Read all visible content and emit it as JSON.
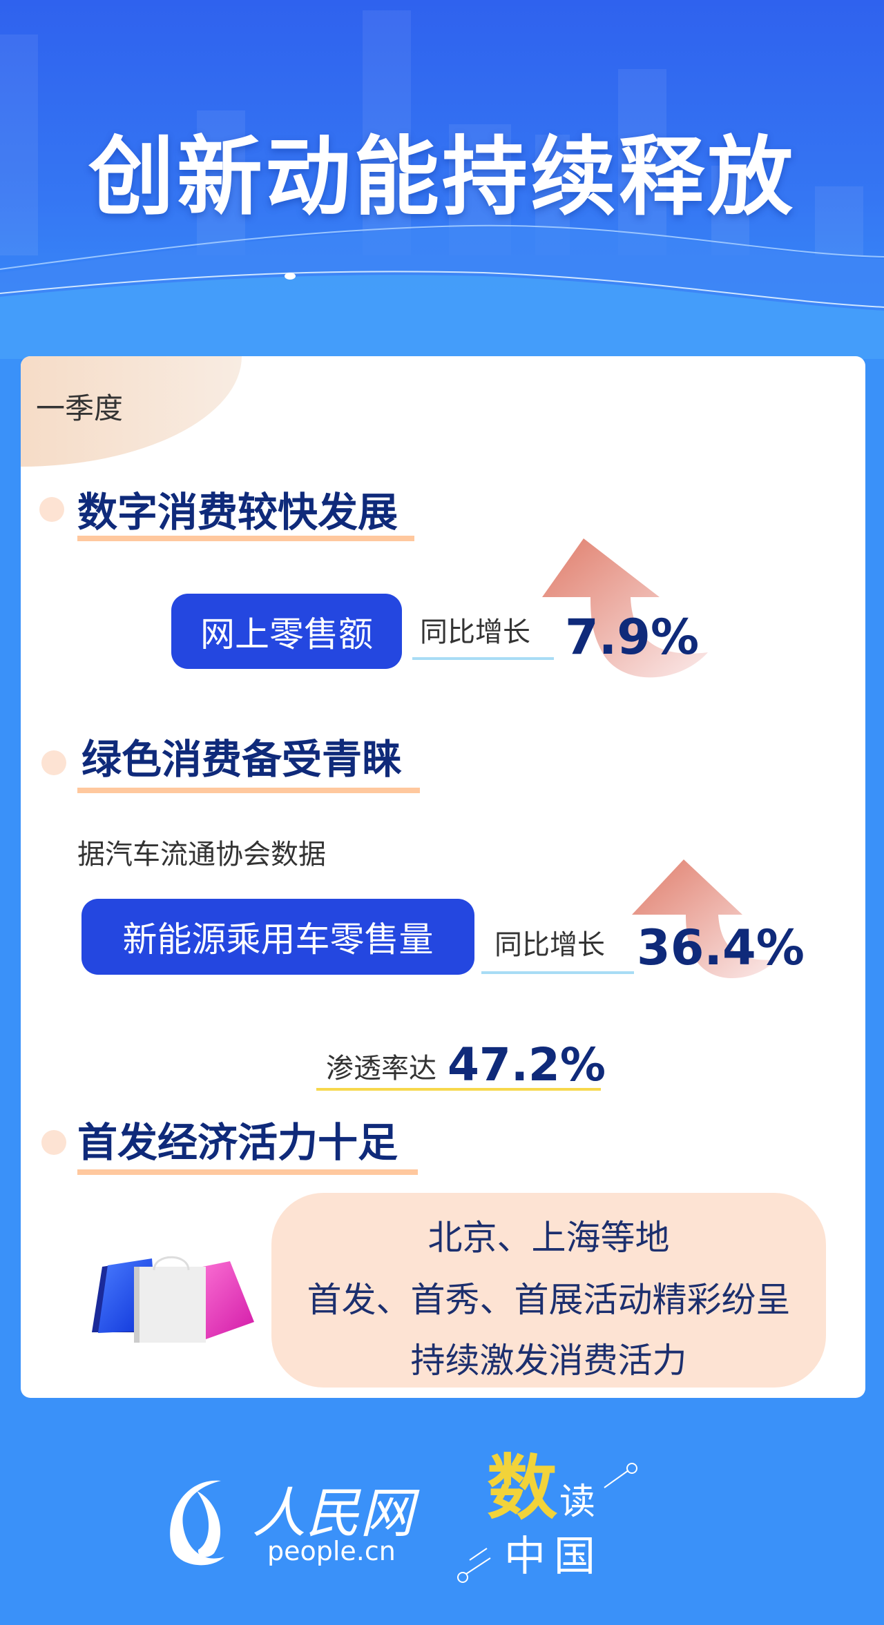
{
  "header": {
    "title": "创新动能持续释放"
  },
  "card": {
    "period": "一季度",
    "sections": [
      {
        "title": "数字消费较快发展",
        "metric": "网上零售额",
        "growth_label": "同比增长",
        "growth_value": "7.9%"
      },
      {
        "title": "绿色消费备受青睐",
        "source": "据汽车流通协会数据",
        "metric": "新能源乘用车零售量",
        "growth_label": "同比增长",
        "growth_value": "36.4%",
        "penetration_label": "渗透率达",
        "penetration_value": "47.2%"
      },
      {
        "title": "首发经济活力十足",
        "lines": [
          "北京、上海等地",
          "首发、首秀、首展活动精彩纷呈",
          "持续激发消费活力"
        ]
      }
    ]
  },
  "footer": {
    "logo_text": "人民网",
    "logo_domain": "people.cn",
    "brand": {
      "highlight": "数",
      "rest1": "读",
      "rest2": "中国"
    }
  },
  "colors": {
    "accent_blue": "#2447e0",
    "title_navy": "#0f2a7a",
    "underline_orange": "#ffc89e",
    "underline_blue": "#a8dcf5",
    "underline_yellow": "#f7d84c",
    "arrow": "#e2897a",
    "brand_yellow": "#f2d33a"
  },
  "icons": [
    "up-arrow-icon",
    "shopping-bags-icon",
    "people-logo-icon"
  ]
}
